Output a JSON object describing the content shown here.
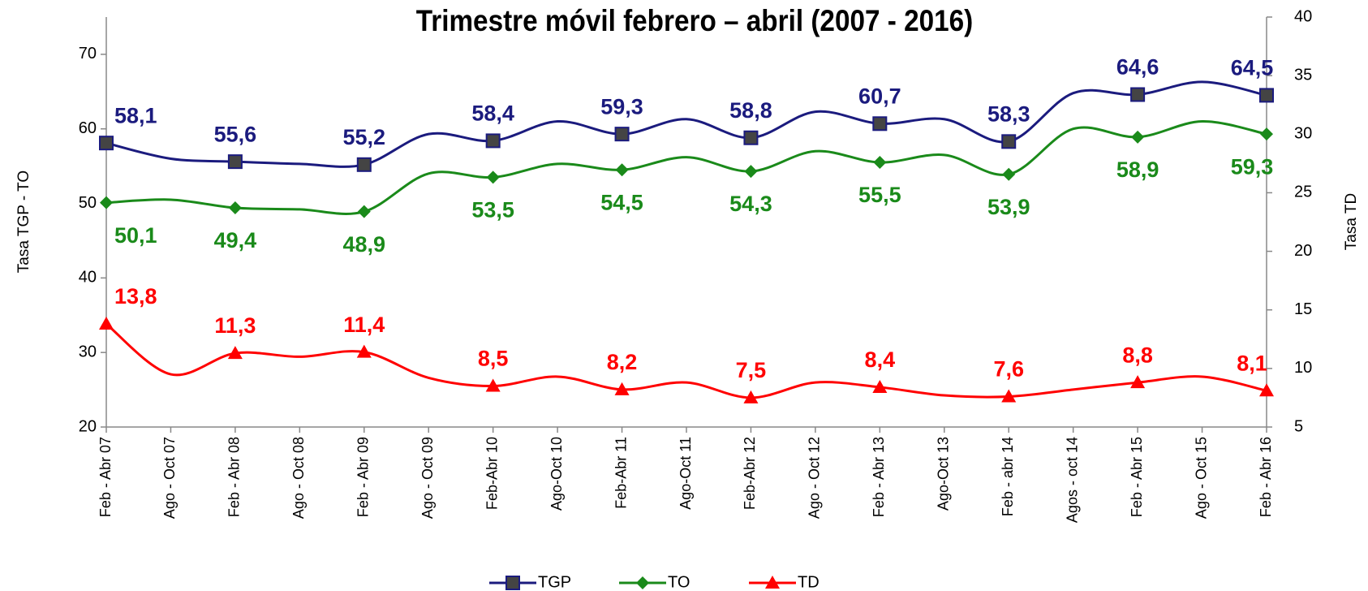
{
  "chart_data": {
    "type": "line",
    "title": "Trimestre móvil febrero – abril (2007 - 2016)",
    "ylabel": "Tasa TGP - TO",
    "y2label": "Tasa TD",
    "categories": [
      "Feb - Abr 07",
      "Ago - Oct 07",
      "Feb - Abr 08",
      "Ago - Oct 08",
      "Feb - Abr 09",
      "Ago - Oct 09",
      "Feb-Abr 10",
      "Ago-Oct 10",
      "Feb-Abr 11",
      "Ago-Oct 11",
      "Feb-Abr 12",
      "Ago - Oct 12",
      "Feb - Abr 13",
      "Ago-Oct 13",
      "Feb - abr 14",
      "Agos - oct 14",
      "Feb - Abr 15",
      "Ago - Oct 15",
      "Feb - Abr 16"
    ],
    "series": [
      {
        "name": "TGP",
        "color": "#1b1b7e",
        "marker": "square",
        "values": [
          58.1,
          56.0,
          55.6,
          55.3,
          55.2,
          59.3,
          58.4,
          61.0,
          59.3,
          61.3,
          58.8,
          62.3,
          60.7,
          61.3,
          58.3,
          64.8,
          64.6,
          66.3,
          64.5
        ],
        "value_labels": [
          "58,1",
          null,
          "55,6",
          null,
          "55,2",
          null,
          "58,4",
          null,
          "59,3",
          null,
          "58,8",
          null,
          "60,7",
          null,
          "58,3",
          null,
          "64,6",
          null,
          "64,5"
        ]
      },
      {
        "name": "TO",
        "color": "#1a8a1a",
        "marker": "diamond",
        "values": [
          50.1,
          50.5,
          49.4,
          49.2,
          48.9,
          54.0,
          53.5,
          55.3,
          54.5,
          56.2,
          54.3,
          57.0,
          55.5,
          56.5,
          53.9,
          60.0,
          58.9,
          61.0,
          59.3
        ],
        "value_labels": [
          "50,1",
          null,
          "49,4",
          null,
          "48,9",
          null,
          "53,5",
          null,
          "54,5",
          null,
          "54,3",
          null,
          "55,5",
          null,
          "53,9",
          null,
          "58,9",
          null,
          "59,3"
        ]
      },
      {
        "name": "TD",
        "color": "#ff0000",
        "marker": "triangle",
        "axis": "y2",
        "values": [
          13.8,
          9.5,
          11.3,
          11.0,
          11.4,
          9.2,
          8.5,
          9.3,
          8.2,
          8.8,
          7.5,
          8.8,
          8.4,
          7.7,
          7.6,
          8.2,
          8.8,
          9.3,
          8.1
        ],
        "value_labels": [
          "13,8",
          null,
          "11,3",
          null,
          "11,4",
          null,
          "8,5",
          null,
          "8,2",
          null,
          "7,5",
          null,
          "8,4",
          null,
          "7,6",
          null,
          "8,8",
          null,
          "8,1"
        ]
      }
    ],
    "ylim": [
      20,
      75
    ],
    "yticks": [
      20,
      30,
      40,
      50,
      60,
      70
    ],
    "y2lim": [
      5,
      40
    ],
    "y2ticks": [
      5,
      10,
      15,
      20,
      25,
      30,
      35,
      40
    ],
    "grid": false,
    "legend": "bottom"
  }
}
